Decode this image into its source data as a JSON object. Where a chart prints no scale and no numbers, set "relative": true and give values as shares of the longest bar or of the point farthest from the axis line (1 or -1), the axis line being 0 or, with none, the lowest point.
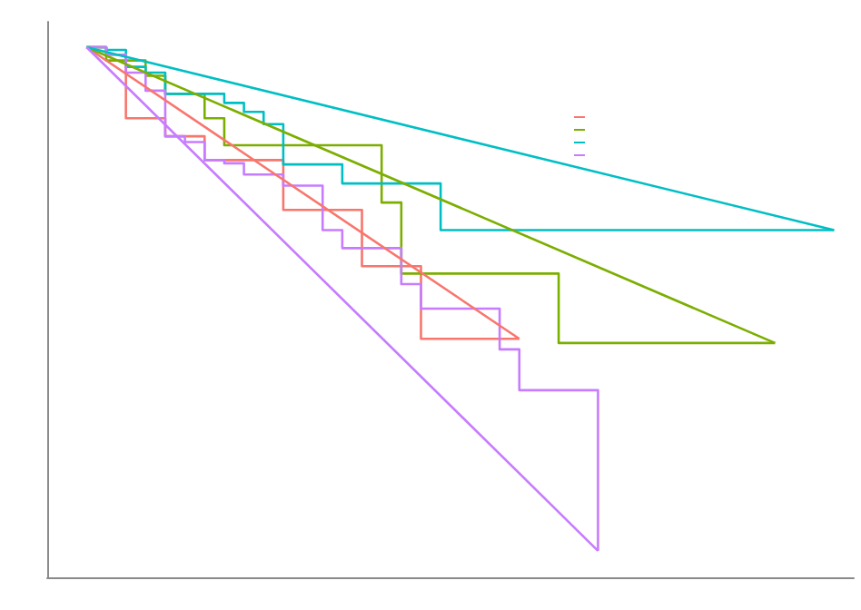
{
  "chart_data": {
    "type": "step",
    "relative": true,
    "categories": [
      null,
      null,
      null,
      null,
      null,
      null,
      null,
      null,
      null,
      null,
      null,
      null,
      null,
      null,
      null,
      null,
      null,
      null,
      null,
      null,
      null,
      null,
      null,
      null,
      null,
      null,
      null,
      null,
      null,
      null,
      null,
      null,
      null,
      null,
      null,
      null,
      null,
      null,
      null,
      null,
      null,
      null
    ],
    "series": [
      {
        "color": "#f8766d",
        "values": [
          null,
          null,
          1.0,
          0.986,
          0.866,
          0.866,
          0.832,
          0.832,
          0.787,
          0.787,
          0.787,
          0.787,
          0.693,
          0.693,
          0.693,
          0.693,
          0.587,
          0.587,
          0.587,
          0.45,
          0.45,
          0.45,
          0.45,
          0.45,
          0.45,
          null,
          null,
          null,
          null,
          null,
          null,
          null,
          null,
          null,
          null,
          null,
          null,
          null,
          null,
          null,
          null,
          null
        ]
      },
      {
        "color": "#7cae00",
        "values": [
          null,
          null,
          1.0,
          0.975,
          0.975,
          0.946,
          0.912,
          0.912,
          0.866,
          0.815,
          0.815,
          0.815,
          0.815,
          0.815,
          0.815,
          0.815,
          0.815,
          0.707,
          0.573,
          0.573,
          0.573,
          0.573,
          0.573,
          0.573,
          0.573,
          0.573,
          0.442,
          0.442,
          0.442,
          0.442,
          0.442,
          0.442,
          0.442,
          0.442,
          0.442,
          0.442,
          0.442,
          0.442,
          null,
          null,
          null,
          null
        ]
      },
      {
        "color": "#00bfc4",
        "values": [
          null,
          null,
          1.0,
          0.995,
          0.963,
          0.952,
          0.912,
          0.912,
          0.912,
          0.895,
          0.878,
          0.855,
          0.779,
          0.779,
          0.779,
          0.743,
          0.743,
          0.743,
          0.743,
          0.743,
          0.655,
          0.655,
          0.655,
          0.655,
          0.655,
          0.655,
          0.655,
          0.655,
          0.655,
          0.655,
          0.655,
          0.655,
          0.655,
          0.655,
          0.655,
          0.655,
          0.655,
          0.655,
          0.655,
          0.655,
          0.655,
          null
        ]
      },
      {
        "color": "#c77cff",
        "values": [
          null,
          null,
          1.0,
          0.986,
          0.952,
          0.918,
          0.832,
          0.821,
          0.787,
          0.781,
          0.76,
          0.76,
          0.739,
          0.739,
          0.655,
          0.621,
          0.621,
          0.621,
          0.553,
          0.507,
          0.507,
          0.507,
          0.507,
          0.43,
          0.353,
          0.353,
          0.353,
          0.353,
          0.05,
          null,
          null,
          null,
          null,
          null,
          null,
          null,
          null,
          null,
          null,
          null,
          null,
          null
        ]
      },
      {
        "type": "line",
        "color": "#f8766d",
        "values": [
          null,
          null,
          1.0,
          null,
          null,
          null,
          null,
          null,
          null,
          null,
          null,
          null,
          null,
          null,
          null,
          null,
          null,
          null,
          null,
          null,
          null,
          null,
          null,
          null,
          0.45,
          null,
          null,
          null,
          null,
          null,
          null,
          null,
          null,
          null,
          null,
          null,
          null,
          null,
          null,
          null,
          null,
          null
        ]
      },
      {
        "type": "line",
        "color": "#7cae00",
        "values": [
          null,
          null,
          1.0,
          null,
          null,
          null,
          null,
          null,
          null,
          null,
          null,
          null,
          null,
          null,
          null,
          null,
          null,
          null,
          null,
          null,
          null,
          null,
          null,
          null,
          null,
          null,
          null,
          null,
          null,
          null,
          null,
          null,
          null,
          null,
          null,
          null,
          null,
          0.442,
          null,
          null,
          null,
          null
        ]
      },
      {
        "type": "line",
        "color": "#00bfc4",
        "values": [
          null,
          null,
          1.0,
          null,
          null,
          null,
          null,
          null,
          null,
          null,
          null,
          null,
          null,
          null,
          null,
          null,
          null,
          null,
          null,
          null,
          null,
          null,
          null,
          null,
          null,
          null,
          null,
          null,
          null,
          null,
          null,
          null,
          null,
          null,
          null,
          null,
          null,
          null,
          null,
          null,
          0.655,
          null
        ]
      },
      {
        "type": "line",
        "color": "#c77cff",
        "values": [
          null,
          null,
          1.0,
          null,
          null,
          null,
          null,
          null,
          null,
          null,
          null,
          null,
          null,
          null,
          null,
          null,
          null,
          null,
          null,
          null,
          null,
          null,
          null,
          null,
          null,
          null,
          null,
          null,
          0.05,
          null,
          null,
          null,
          null,
          null,
          null,
          null,
          null,
          null,
          null,
          null,
          null,
          null
        ]
      }
    ]
  }
}
